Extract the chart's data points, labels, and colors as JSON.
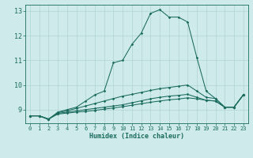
{
  "xlabel": "Humidex (Indice chaleur)",
  "bg_color": "#ceeaea",
  "line_color": "#1a6b5e",
  "grid_color": "#afd4d4",
  "xlim": [
    -0.5,
    23.5
  ],
  "ylim": [
    8.45,
    13.25
  ],
  "yticks": [
    9,
    10,
    11,
    12,
    13
  ],
  "xticks": [
    0,
    1,
    2,
    3,
    4,
    5,
    6,
    7,
    8,
    9,
    10,
    11,
    12,
    13,
    14,
    15,
    16,
    17,
    18,
    19,
    20,
    21,
    22,
    23
  ],
  "series1": [
    [
      0,
      8.75
    ],
    [
      1,
      8.75
    ],
    [
      2,
      8.6
    ],
    [
      3,
      8.9
    ],
    [
      4,
      9.0
    ],
    [
      5,
      9.1
    ],
    [
      6,
      9.35
    ],
    [
      7,
      9.6
    ],
    [
      8,
      9.75
    ],
    [
      9,
      10.9
    ],
    [
      10,
      11.0
    ],
    [
      11,
      11.65
    ],
    [
      12,
      12.1
    ],
    [
      13,
      12.9
    ],
    [
      14,
      13.05
    ],
    [
      15,
      12.75
    ],
    [
      16,
      12.75
    ],
    [
      17,
      12.55
    ],
    [
      18,
      11.1
    ],
    [
      19,
      9.75
    ],
    [
      20,
      9.45
    ],
    [
      21,
      9.1
    ],
    [
      22,
      9.1
    ],
    [
      23,
      9.6
    ]
  ],
  "series2": [
    [
      0,
      8.75
    ],
    [
      1,
      8.75
    ],
    [
      2,
      8.62
    ],
    [
      3,
      8.88
    ],
    [
      4,
      8.95
    ],
    [
      5,
      9.05
    ],
    [
      6,
      9.15
    ],
    [
      7,
      9.25
    ],
    [
      8,
      9.35
    ],
    [
      9,
      9.45
    ],
    [
      10,
      9.55
    ],
    [
      11,
      9.62
    ],
    [
      12,
      9.7
    ],
    [
      13,
      9.78
    ],
    [
      14,
      9.85
    ],
    [
      15,
      9.9
    ],
    [
      16,
      9.95
    ],
    [
      17,
      10.0
    ],
    [
      18,
      9.75
    ],
    [
      19,
      9.5
    ],
    [
      20,
      9.45
    ],
    [
      21,
      9.1
    ],
    [
      22,
      9.1
    ],
    [
      23,
      9.6
    ]
  ],
  "series3": [
    [
      0,
      8.75
    ],
    [
      1,
      8.75
    ],
    [
      2,
      8.62
    ],
    [
      3,
      8.85
    ],
    [
      4,
      8.9
    ],
    [
      5,
      8.95
    ],
    [
      6,
      9.0
    ],
    [
      7,
      9.05
    ],
    [
      8,
      9.1
    ],
    [
      9,
      9.15
    ],
    [
      10,
      9.2
    ],
    [
      11,
      9.28
    ],
    [
      12,
      9.36
    ],
    [
      13,
      9.44
    ],
    [
      14,
      9.5
    ],
    [
      15,
      9.55
    ],
    [
      16,
      9.58
    ],
    [
      17,
      9.62
    ],
    [
      18,
      9.5
    ],
    [
      19,
      9.38
    ],
    [
      20,
      9.35
    ],
    [
      21,
      9.1
    ],
    [
      22,
      9.1
    ],
    [
      23,
      9.6
    ]
  ],
  "series4": [
    [
      0,
      8.75
    ],
    [
      1,
      8.75
    ],
    [
      2,
      8.62
    ],
    [
      3,
      8.82
    ],
    [
      4,
      8.86
    ],
    [
      5,
      8.9
    ],
    [
      6,
      8.93
    ],
    [
      7,
      8.97
    ],
    [
      8,
      9.02
    ],
    [
      9,
      9.07
    ],
    [
      10,
      9.12
    ],
    [
      11,
      9.18
    ],
    [
      12,
      9.24
    ],
    [
      13,
      9.3
    ],
    [
      14,
      9.35
    ],
    [
      15,
      9.4
    ],
    [
      16,
      9.43
    ],
    [
      17,
      9.48
    ],
    [
      18,
      9.44
    ],
    [
      19,
      9.38
    ],
    [
      20,
      9.35
    ],
    [
      21,
      9.1
    ],
    [
      22,
      9.1
    ],
    [
      23,
      9.6
    ]
  ]
}
